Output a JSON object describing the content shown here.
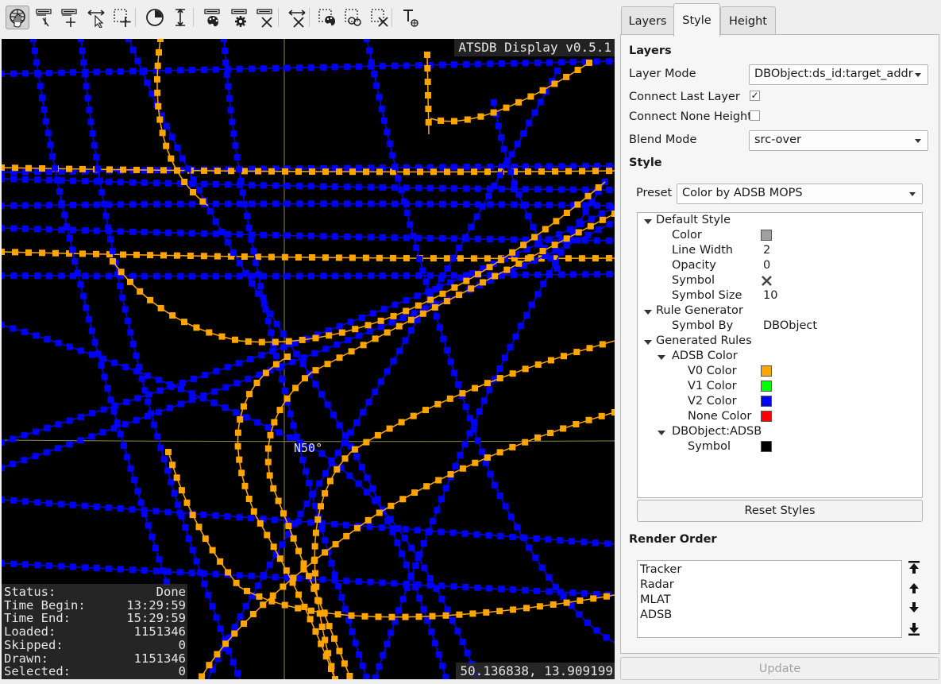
{
  "toolbar": {
    "tools": [
      {
        "name": "navigate-tool",
        "icon": "hand-globe-icon",
        "active": true
      },
      {
        "name": "label-add-tool",
        "icon": "label-add-icon"
      },
      {
        "name": "label-edit-tool",
        "icon": "label-edit-icon"
      },
      {
        "name": "measure-tool",
        "icon": "arrow-measure-icon"
      },
      {
        "name": "select-add-tool",
        "icon": "select-add-icon"
      },
      {
        "name": "time-filter-tool",
        "icon": "clock-icon"
      },
      {
        "name": "height-filter-tool",
        "icon": "height-icon"
      },
      {
        "name": "style-presets-tool",
        "icon": "palette-icon"
      },
      {
        "name": "settings-tool",
        "icon": "gear-icon"
      },
      {
        "name": "delete-labels-tool",
        "icon": "delete-labels-icon"
      },
      {
        "name": "clear-measure-tool",
        "icon": "clear-measure-icon"
      },
      {
        "name": "select-style-tool",
        "icon": "select-palette-icon"
      },
      {
        "name": "select-invert-tool",
        "icon": "select-invert-icon"
      },
      {
        "name": "select-clear-tool",
        "icon": "select-clear-icon"
      },
      {
        "name": "text-tool",
        "icon": "text-tool-icon"
      }
    ]
  },
  "map": {
    "title": "ATSDB Display v0.5.1",
    "grid_label": "N50°",
    "coords": "50.136838, 13.909199",
    "colors": {
      "blue": "#0000ff",
      "orange": "#ffa500",
      "grid": "#8a8a4a"
    },
    "status": [
      {
        "label": "Status:",
        "value": "Done"
      },
      {
        "label": "Time Begin:",
        "value": "13:29:59"
      },
      {
        "label": "Time End:",
        "value": "15:29:59"
      },
      {
        "label": "Loaded:",
        "value": "1151346"
      },
      {
        "label": "Skipped:",
        "value": "0"
      },
      {
        "label": "Drawn:",
        "value": "1151346"
      },
      {
        "label": "Selected:",
        "value": "0"
      }
    ]
  },
  "panel": {
    "tabs": [
      "Layers",
      "Style",
      "Height"
    ],
    "active_tab": "Style",
    "layers_heading": "Layers",
    "layer_mode_label": "Layer Mode",
    "layer_mode_value": "DBObject:ds_id:target_addr",
    "connect_last_label": "Connect Last Layer",
    "connect_last_checked": "✓",
    "connect_none_label": "Connect None Height",
    "blend_mode_label": "Blend Mode",
    "blend_mode_value": "src-over",
    "style_heading": "Style",
    "preset_label": "Preset",
    "preset_value": "Color by ADSB MOPS",
    "tree": {
      "default_style": "Default Style",
      "color_label": "Color",
      "color_value": "#a0a0a0",
      "line_width_label": "Line Width",
      "line_width_value": "2",
      "opacity_label": "Opacity",
      "opacity_value": "0",
      "symbol_label": "Symbol",
      "symbol_icon": "x-cross-icon",
      "symbol_size_label": "Symbol Size",
      "symbol_size_value": "10",
      "rule_generator": "Rule Generator",
      "symbol_by_label": "Symbol By",
      "symbol_by_value": "DBObject",
      "generated_rules": "Generated Rules",
      "adsb_color": "ADSB Color",
      "v0_label": "V0 Color",
      "v0_color": "#ffa500",
      "v1_label": "V1 Color",
      "v1_color": "#00ff00",
      "v2_label": "V2 Color",
      "v2_color": "#0000ff",
      "none_label": "None Color",
      "none_color": "#ff0000",
      "dbobject_adsb": "DBObject:ADSB",
      "symbol2_label": "Symbol",
      "symbol2_color": "#000000"
    },
    "reset_styles": "Reset Styles",
    "render_order_heading": "Render Order",
    "render_order": [
      "Tracker",
      "Radar",
      "MLAT",
      "ADSB"
    ],
    "update": "Update"
  }
}
